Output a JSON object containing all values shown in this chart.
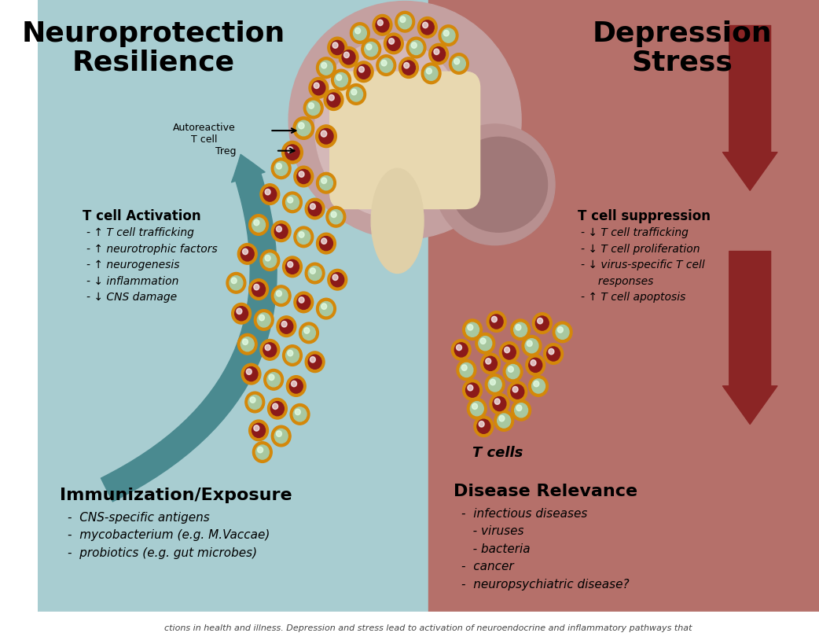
{
  "bg_left": "#a8cdd1",
  "bg_right": "#b5706a",
  "title_left": "Neuroprotection\nResilience",
  "title_right": "Depression\nStress",
  "title_fontsize": 26,
  "left_arrow_color": "#4a8a90",
  "right_arrow_color": "#8b2525",
  "t_cell_activation_title": "T cell Activation",
  "t_cell_activation_items": [
    "- ↑ T cell trafficking",
    "- ↑ neurotrophic factors",
    "- ↑ neurogenesis",
    "- ↓ inflammation",
    "- ↓ CNS damage"
  ],
  "t_cell_suppression_title": "T cell suppression",
  "t_cell_suppression_items": [
    "- ↓ T cell trafficking",
    "- ↓ T cell proliferation",
    "- ↓ virus-specific T cell",
    "     responses",
    "- ↑ T cell apoptosis"
  ],
  "immunization_title": "Immunization/Exposure",
  "immunization_items": [
    "-  CNS-specific antigens",
    "-  mycobacterium (e.g. M.Vaccae)",
    "-  probiotics (e.g. gut microbes)"
  ],
  "disease_title": "Disease Relevance",
  "disease_items": [
    "-  infectious diseases",
    "   - viruses",
    "   - bacteria",
    "-  cancer",
    "-  neuropsychiatric disease?"
  ],
  "t_cells_label": "T cells",
  "autoreactive_label": "Autoreactive\nT cell",
  "treg_label": "Treg",
  "caption": "ctions in health and illness. Depression and stress lead to activation of neuroendocrine and inflammatory pathways that",
  "caption_color": "#444444",
  "dark_cell_color": "#8b1a1a",
  "light_cell_color": "#a8c8a0",
  "cell_ring_color": "#d4880a",
  "brain_outer": "#c4a0a0",
  "brain_inner": "#e8d8b0",
  "brain_mid": "#d4b8b8",
  "cerebellum_color": "#b89090",
  "brainstem_color": "#e0d0a8"
}
